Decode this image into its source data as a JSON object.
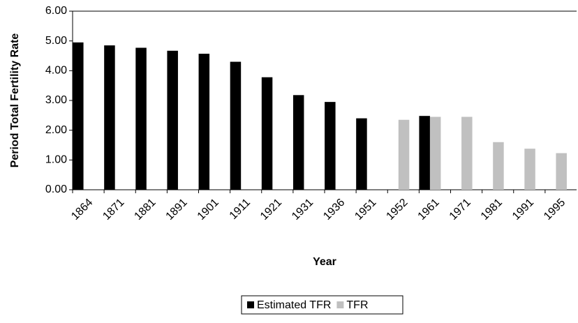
{
  "chart_data": {
    "type": "bar",
    "x_label": "Year",
    "y_label": "Period Total Fertility Rate",
    "categories": [
      "1864",
      "1871",
      "1881",
      "1891",
      "1901",
      "1911",
      "1921",
      "1931",
      "1936",
      "1951",
      "1952",
      "1961",
      "1971",
      "1981",
      "1991",
      "1995"
    ],
    "series": [
      {
        "name": "Estimated TFR",
        "color": "#000000",
        "values": [
          4.95,
          4.85,
          4.77,
          4.67,
          4.57,
          4.3,
          3.78,
          3.18,
          2.95,
          2.4,
          null,
          2.48,
          null,
          null,
          null,
          null
        ]
      },
      {
        "name": "TFR",
        "color": "#c0c0c0",
        "values": [
          null,
          null,
          null,
          null,
          null,
          null,
          null,
          null,
          null,
          null,
          2.35,
          2.45,
          2.45,
          1.6,
          1.38,
          1.23
        ]
      }
    ],
    "ylim": [
      0,
      6
    ],
    "yticks": [
      {
        "value": 0,
        "label": "0.00"
      },
      {
        "value": 1,
        "label": "1.00"
      },
      {
        "value": 2,
        "label": "2.00"
      },
      {
        "value": 3,
        "label": "3.00"
      },
      {
        "value": 4,
        "label": "4.00"
      },
      {
        "value": 5,
        "label": "5.00"
      },
      {
        "value": 6,
        "label": "6.00"
      }
    ],
    "legend": "bottom"
  }
}
